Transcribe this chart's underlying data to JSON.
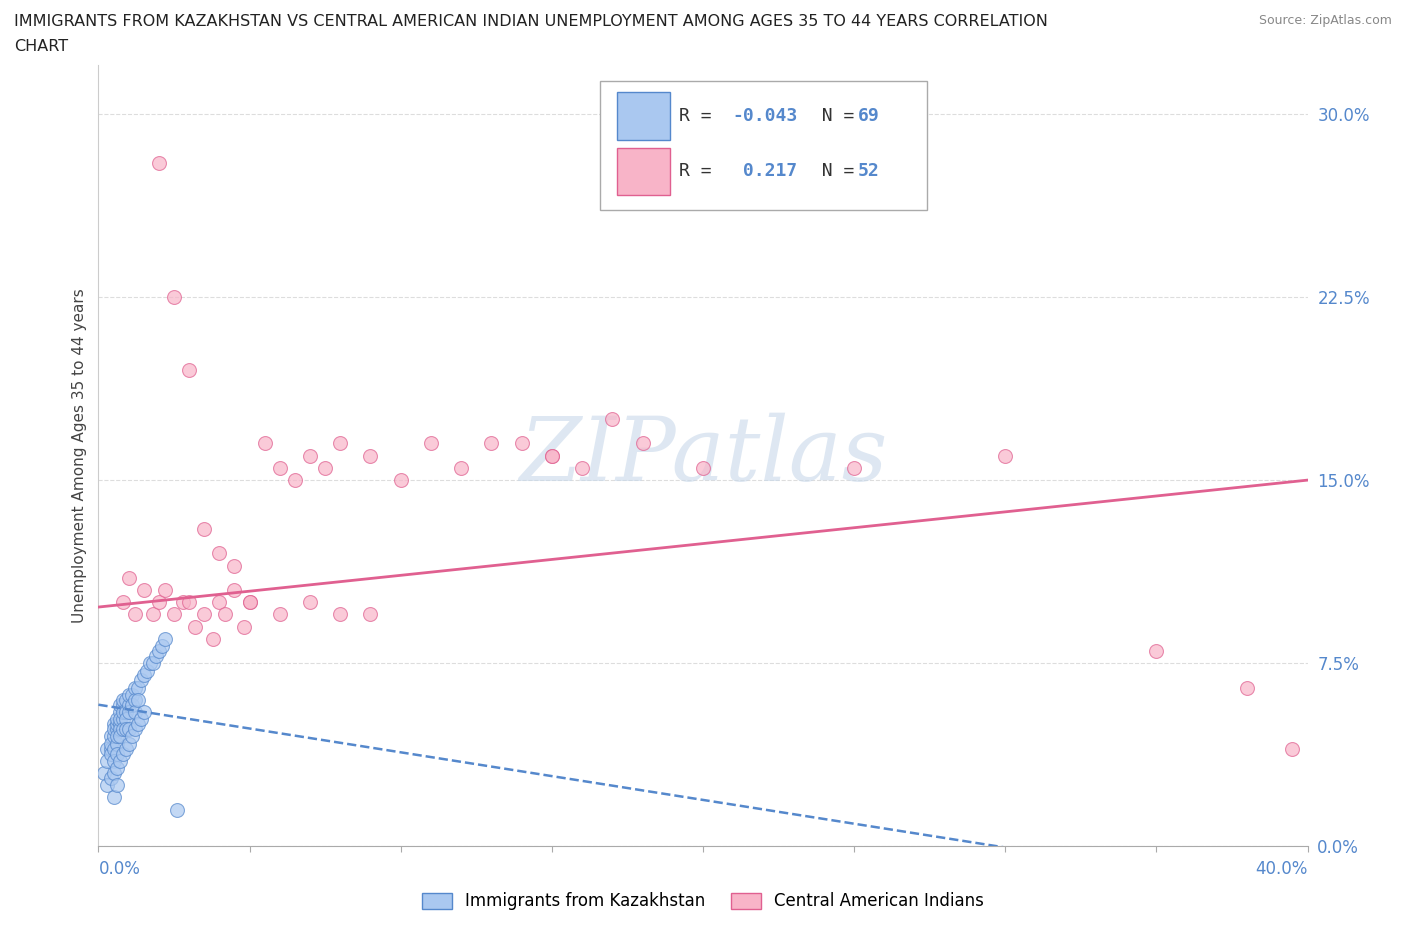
{
  "title_line1": "IMMIGRANTS FROM KAZAKHSTAN VS CENTRAL AMERICAN INDIAN UNEMPLOYMENT AMONG AGES 35 TO 44 YEARS CORRELATION",
  "title_line2": "CHART",
  "source": "Source: ZipAtlas.com",
  "ylabel": "Unemployment Among Ages 35 to 44 years",
  "xlim": [
    0.0,
    0.4
  ],
  "ylim": [
    -0.02,
    0.32
  ],
  "plot_ylim": [
    0.0,
    0.32
  ],
  "yticks": [
    0.0,
    0.075,
    0.15,
    0.225,
    0.3
  ],
  "ytick_labels": [
    "0.0%",
    "7.5%",
    "15.0%",
    "22.5%",
    "30.0%"
  ],
  "series1_label": "Immigrants from Kazakhstan",
  "series1_color": "#aac8f0",
  "series1_edge": "#5588cc",
  "series1_R": -0.043,
  "series1_N": 69,
  "series1_line_color": "#5588cc",
  "series2_label": "Central American Indians",
  "series2_color": "#f8b4c8",
  "series2_edge": "#e06090",
  "series2_R": 0.217,
  "series2_N": 52,
  "series2_line_color": "#e06090",
  "watermark": "ZIPatlas",
  "watermark_color": "#c8d8ea",
  "background_color": "#ffffff",
  "grid_color": "#dddddd",
  "kazakh_x": [
    0.002,
    0.003,
    0.003,
    0.004,
    0.004,
    0.004,
    0.004,
    0.005,
    0.005,
    0.005,
    0.005,
    0.005,
    0.006,
    0.006,
    0.006,
    0.006,
    0.006,
    0.006,
    0.007,
    0.007,
    0.007,
    0.007,
    0.007,
    0.007,
    0.008,
    0.008,
    0.008,
    0.008,
    0.008,
    0.009,
    0.009,
    0.009,
    0.009,
    0.01,
    0.01,
    0.01,
    0.01,
    0.011,
    0.011,
    0.012,
    0.012,
    0.012,
    0.013,
    0.013,
    0.014,
    0.015,
    0.016,
    0.017,
    0.018,
    0.019,
    0.02,
    0.021,
    0.022,
    0.003,
    0.004,
    0.005,
    0.006,
    0.007,
    0.008,
    0.009,
    0.01,
    0.011,
    0.012,
    0.013,
    0.014,
    0.015,
    0.005,
    0.006,
    0.026
  ],
  "kazakh_y": [
    0.03,
    0.04,
    0.035,
    0.04,
    0.045,
    0.038,
    0.042,
    0.04,
    0.045,
    0.05,
    0.035,
    0.048,
    0.042,
    0.048,
    0.05,
    0.045,
    0.052,
    0.038,
    0.05,
    0.055,
    0.048,
    0.052,
    0.058,
    0.045,
    0.052,
    0.058,
    0.06,
    0.048,
    0.055,
    0.055,
    0.06,
    0.052,
    0.048,
    0.058,
    0.062,
    0.055,
    0.048,
    0.062,
    0.058,
    0.065,
    0.06,
    0.055,
    0.065,
    0.06,
    0.068,
    0.07,
    0.072,
    0.075,
    0.075,
    0.078,
    0.08,
    0.082,
    0.085,
    0.025,
    0.028,
    0.03,
    0.032,
    0.035,
    0.038,
    0.04,
    0.042,
    0.045,
    0.048,
    0.05,
    0.052,
    0.055,
    0.02,
    0.025,
    0.015
  ],
  "central_x": [
    0.008,
    0.01,
    0.012,
    0.015,
    0.018,
    0.02,
    0.022,
    0.025,
    0.028,
    0.03,
    0.032,
    0.035,
    0.038,
    0.04,
    0.042,
    0.045,
    0.048,
    0.05,
    0.055,
    0.06,
    0.065,
    0.07,
    0.075,
    0.08,
    0.09,
    0.1,
    0.11,
    0.12,
    0.13,
    0.14,
    0.15,
    0.16,
    0.17,
    0.18,
    0.02,
    0.025,
    0.03,
    0.035,
    0.04,
    0.045,
    0.05,
    0.06,
    0.07,
    0.08,
    0.09,
    0.15,
    0.2,
    0.25,
    0.3,
    0.35,
    0.38,
    0.395
  ],
  "central_y": [
    0.1,
    0.11,
    0.095,
    0.105,
    0.095,
    0.1,
    0.105,
    0.095,
    0.1,
    0.1,
    0.09,
    0.095,
    0.085,
    0.1,
    0.095,
    0.105,
    0.09,
    0.1,
    0.165,
    0.155,
    0.15,
    0.16,
    0.155,
    0.165,
    0.16,
    0.15,
    0.165,
    0.155,
    0.165,
    0.165,
    0.16,
    0.155,
    0.175,
    0.165,
    0.28,
    0.225,
    0.195,
    0.13,
    0.12,
    0.115,
    0.1,
    0.095,
    0.1,
    0.095,
    0.095,
    0.16,
    0.155,
    0.155,
    0.16,
    0.08,
    0.065,
    0.04
  ],
  "kazakh_trendline_x": [
    0.0,
    0.4
  ],
  "kazakh_trendline_y": [
    0.058,
    -0.02
  ],
  "central_trendline_x": [
    0.0,
    0.4
  ],
  "central_trendline_y": [
    0.098,
    0.15
  ]
}
